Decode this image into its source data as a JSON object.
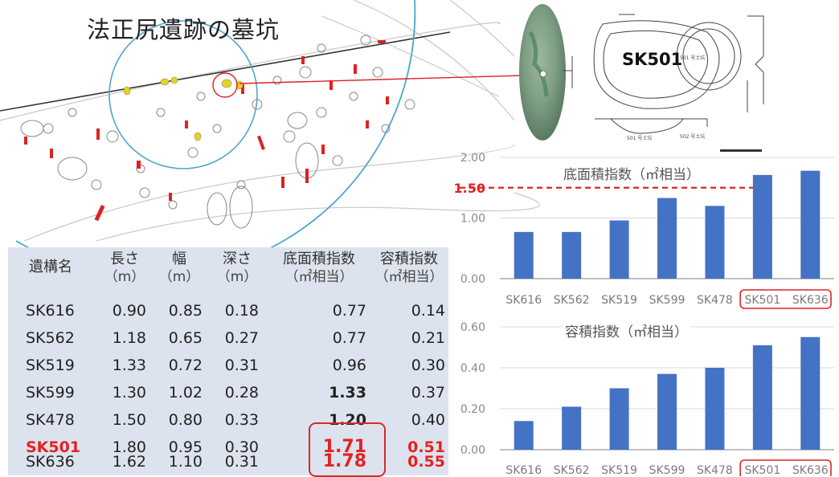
{
  "title": "法正尻遺跡の墓坑",
  "photo_label": "SK501",
  "table": {
    "headers": [
      {
        "label": "遺構名",
        "unit": ""
      },
      {
        "label": "長さ",
        "unit": "（m）"
      },
      {
        "label": "幅",
        "unit": "（m）"
      },
      {
        "label": "深さ",
        "unit": "（m）"
      },
      {
        "label": "底面積指数",
        "unit": "（㎡相当）"
      },
      {
        "label": "容積指数",
        "unit": "（㎡相当）"
      }
    ],
    "rows": [
      {
        "name": "SK616",
        "length": "0.90",
        "width": "0.85",
        "depth": "0.18",
        "area": "0.77",
        "volume": "0.14"
      },
      {
        "name": "SK562",
        "length": "1.18",
        "width": "0.65",
        "depth": "0.27",
        "area": "0.77",
        "volume": "0.21"
      },
      {
        "name": "SK519",
        "length": "1.33",
        "width": "0.72",
        "depth": "0.31",
        "area": "0.96",
        "volume": "0.30"
      },
      {
        "name": "SK599",
        "length": "1.30",
        "width": "1.02",
        "depth": "0.28",
        "area": "1.33",
        "volume": "0.37"
      },
      {
        "name": "SK478",
        "length": "1.50",
        "width": "0.80",
        "depth": "0.33",
        "area": "1.20",
        "volume": "0.40"
      },
      {
        "name": "SK501",
        "length": "1.80",
        "width": "0.95",
        "depth": "0.30",
        "area": "1.71",
        "volume": "0.51"
      },
      {
        "name": "SK636",
        "length": "1.62",
        "width": "1.10",
        "depth": "0.31",
        "area": "1.78",
        "volume": "0.55"
      }
    ]
  },
  "colors": {
    "bar": "#4472c4",
    "highlight": "#e32222",
    "grid": "#d9d9d9",
    "axis": "#7f7f7f"
  },
  "chart_data": [
    {
      "type": "bar",
      "title": "底面積指数（㎡相当）",
      "categories": [
        "SK616",
        "SK562",
        "SK519",
        "SK599",
        "SK478",
        "SK501",
        "SK636"
      ],
      "values": [
        0.77,
        0.77,
        0.96,
        1.33,
        1.2,
        1.71,
        1.78
      ],
      "ylim": [
        0,
        2
      ],
      "yticks": [
        "0.00",
        "1.00",
        "1.50",
        "2.00"
      ],
      "reference_line": {
        "value": 1.5,
        "label": "1.50"
      },
      "grid": true,
      "highlighted_categories": [
        "SK501",
        "SK636"
      ]
    },
    {
      "type": "bar",
      "title": "容積指数（㎡相当）",
      "categories": [
        "SK616",
        "SK562",
        "SK519",
        "SK599",
        "SK478",
        "SK501",
        "SK636"
      ],
      "values": [
        0.14,
        0.21,
        0.3,
        0.37,
        0.4,
        0.51,
        0.55
      ],
      "ylim": [
        0,
        0.6
      ],
      "yticks": [
        "0.00",
        "0.20",
        "0.40",
        "0.60"
      ],
      "grid": true,
      "highlighted_categories": [
        "SK501",
        "SK636"
      ]
    }
  ]
}
